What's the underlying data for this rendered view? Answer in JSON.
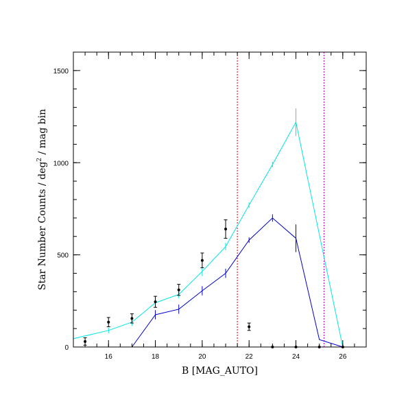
{
  "chart_data": {
    "type": "line",
    "xlabel": "B [MAG_AUTO]",
    "ylabel_parts": [
      "Star Number Counts / deg",
      "2",
      " / mag bin"
    ],
    "xlim": [
      14.5,
      27
    ],
    "ylim": [
      0,
      1600
    ],
    "x_ticks": [
      16,
      18,
      20,
      22,
      24,
      26
    ],
    "y_ticks": [
      0,
      500,
      1000,
      1500
    ],
    "x_minor_step": 0.5,
    "y_minor_step": 100,
    "grid": false,
    "vlines": [
      {
        "x": 21.5,
        "color": "#cc0000"
      },
      {
        "x": 25.2,
        "color": "#cc00cc"
      }
    ],
    "series": [
      {
        "color": "#00e5e5",
        "style": "line",
        "points": [
          {
            "x": 14.5,
            "y": 45,
            "err": 0
          },
          {
            "x": 16,
            "y": 90,
            "err": 15
          },
          {
            "x": 17,
            "y": 135,
            "err": 20
          },
          {
            "x": 18,
            "y": 240,
            "err": 25
          },
          {
            "x": 19,
            "y": 285,
            "err": 20
          },
          {
            "x": 20,
            "y": 410,
            "err": 25
          },
          {
            "x": 21,
            "y": 545,
            "err": 20
          },
          {
            "x": 22,
            "y": 770,
            "err": 15
          },
          {
            "x": 23,
            "y": 990,
            "err": 15
          },
          {
            "x": 24,
            "y": 1220,
            "err": 75
          },
          {
            "x": 26,
            "y": 0,
            "err": 0
          }
        ]
      },
      {
        "color": "#0000cc",
        "style": "line",
        "points": [
          {
            "x": 17,
            "y": 0,
            "err": 0
          },
          {
            "x": 18,
            "y": 175,
            "err": 25
          },
          {
            "x": 19,
            "y": 205,
            "err": 25
          },
          {
            "x": 20,
            "y": 305,
            "err": 25
          },
          {
            "x": 21,
            "y": 400,
            "err": 25
          },
          {
            "x": 22,
            "y": 580,
            "err": 15
          },
          {
            "x": 23,
            "y": 700,
            "err": 20
          },
          {
            "x": 24,
            "y": 590,
            "err": 75
          },
          {
            "x": 25,
            "y": 40,
            "err": 0
          },
          {
            "x": 26,
            "y": 0,
            "err": 0
          }
        ]
      },
      {
        "color": "#000000",
        "style": "points",
        "points": [
          {
            "x": 15,
            "y": 30,
            "err": 20
          },
          {
            "x": 16,
            "y": 135,
            "err": 25
          },
          {
            "x": 17,
            "y": 155,
            "err": 25
          },
          {
            "x": 18,
            "y": 245,
            "err": 30
          },
          {
            "x": 19,
            "y": 310,
            "err": 30
          },
          {
            "x": 20,
            "y": 470,
            "err": 40
          },
          {
            "x": 21,
            "y": 640,
            "err": 50
          },
          {
            "x": 22,
            "y": 110,
            "err": 20
          },
          {
            "x": 23,
            "y": 0,
            "err": 0
          },
          {
            "x": 24,
            "y": 0,
            "err": 0
          },
          {
            "x": 25,
            "y": 0,
            "err": 0
          },
          {
            "x": 26,
            "y": 0,
            "err": 0
          }
        ]
      }
    ]
  }
}
